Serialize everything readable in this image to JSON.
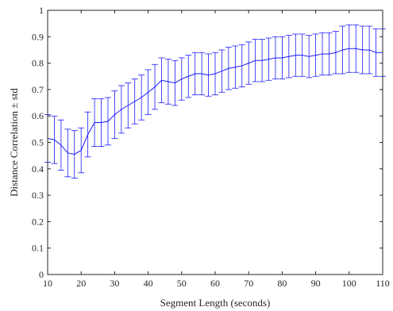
{
  "chart_data": {
    "type": "line",
    "title": "",
    "xlabel": "Segment Length (seconds)",
    "ylabel": "Distance Correlation ± std",
    "xlim": [
      10,
      110
    ],
    "ylim": [
      0,
      1
    ],
    "xticks": [
      10,
      20,
      30,
      40,
      50,
      60,
      70,
      80,
      90,
      100,
      110
    ],
    "yticks": [
      0,
      0.1,
      0.2,
      0.3,
      0.4,
      0.5,
      0.6,
      0.7,
      0.8,
      0.9,
      1
    ],
    "grid": false,
    "legend": "none",
    "error_bars": true,
    "series": [
      {
        "color": "#1a1aff",
        "x": [
          10,
          12,
          14,
          16,
          18,
          20,
          22,
          24,
          26,
          28,
          30,
          32,
          34,
          36,
          38,
          40,
          42,
          44,
          46,
          48,
          50,
          52,
          54,
          56,
          58,
          60,
          62,
          64,
          66,
          68,
          70,
          72,
          74,
          76,
          78,
          80,
          82,
          84,
          86,
          88,
          90,
          92,
          94,
          96,
          98,
          100,
          102,
          104,
          106,
          108,
          110
        ],
        "mean": [
          0.515,
          0.51,
          0.49,
          0.46,
          0.455,
          0.47,
          0.53,
          0.575,
          0.575,
          0.58,
          0.605,
          0.625,
          0.64,
          0.655,
          0.67,
          0.69,
          0.71,
          0.735,
          0.73,
          0.725,
          0.74,
          0.75,
          0.76,
          0.76,
          0.755,
          0.76,
          0.77,
          0.78,
          0.785,
          0.79,
          0.8,
          0.81,
          0.81,
          0.815,
          0.82,
          0.82,
          0.825,
          0.83,
          0.83,
          0.825,
          0.83,
          0.835,
          0.835,
          0.84,
          0.85,
          0.855,
          0.855,
          0.85,
          0.85,
          0.84,
          0.84
        ],
        "std": [
          0.09,
          0.09,
          0.095,
          0.09,
          0.09,
          0.085,
          0.085,
          0.09,
          0.09,
          0.09,
          0.09,
          0.09,
          0.085,
          0.085,
          0.085,
          0.085,
          0.085,
          0.085,
          0.085,
          0.085,
          0.08,
          0.08,
          0.08,
          0.08,
          0.08,
          0.08,
          0.08,
          0.08,
          0.08,
          0.08,
          0.08,
          0.08,
          0.08,
          0.08,
          0.08,
          0.08,
          0.08,
          0.08,
          0.08,
          0.08,
          0.08,
          0.08,
          0.08,
          0.08,
          0.09,
          0.09,
          0.09,
          0.09,
          0.09,
          0.09,
          0.09
        ]
      }
    ]
  }
}
